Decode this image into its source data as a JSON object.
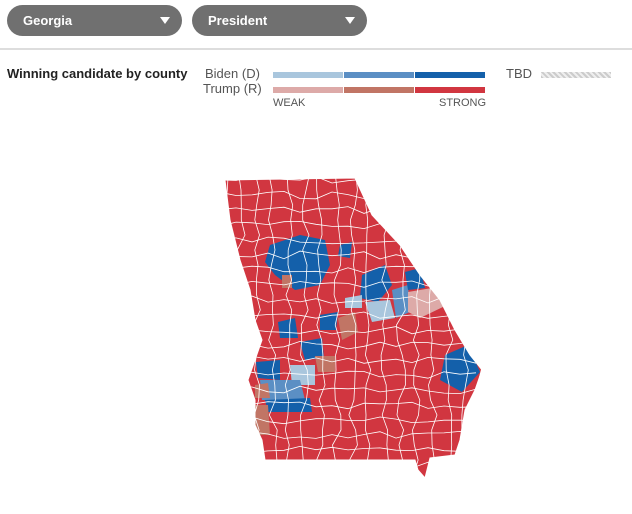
{
  "header": {
    "state_select": "Georgia",
    "race_select": "President"
  },
  "legend": {
    "title": "Winning candidate by county",
    "dem": "Biden (D)",
    "rep": "Trump (R)",
    "weak": "WEAK",
    "strong": "STRONG",
    "tbd": "TBD"
  }
}
